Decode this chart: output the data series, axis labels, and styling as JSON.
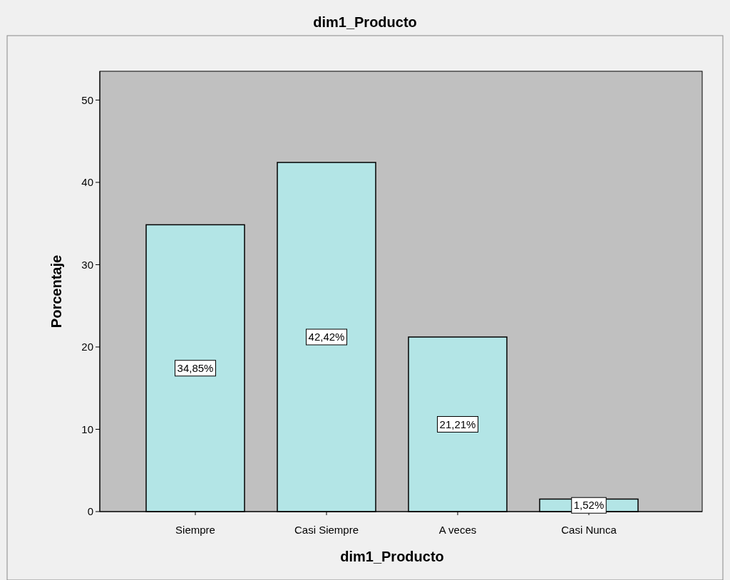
{
  "chart_data": {
    "type": "bar",
    "title": "dim1_Producto",
    "xlabel": "dim1_Producto",
    "ylabel": "Porcentaje",
    "categories": [
      "Siempre",
      "Casi Siempre",
      "A veces",
      "Casi Nunca"
    ],
    "values": [
      34.85,
      42.42,
      21.21,
      1.52
    ],
    "value_labels": [
      "34,85%",
      "42,42%",
      "21,21%",
      "1,52%"
    ],
    "color": "#b3e5e6",
    "ylim": [
      0,
      53.5
    ],
    "yticks": [
      0,
      10,
      20,
      30,
      40,
      50
    ]
  }
}
